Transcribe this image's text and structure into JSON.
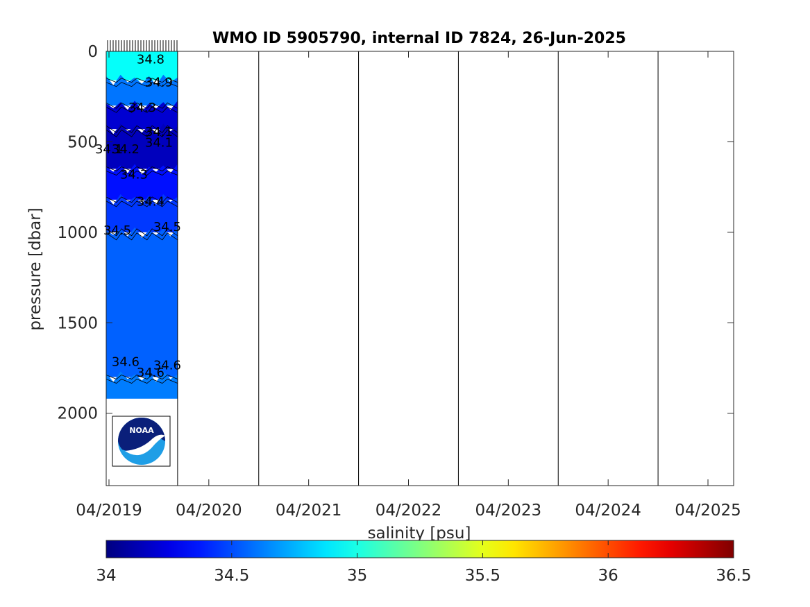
{
  "chart_data": {
    "type": "heatmap",
    "title": "WMO ID 5905790, internal ID 7824, 26-Jun-2025",
    "xlabel": "",
    "ylabel": "pressure [dbar]",
    "x_ticks": [
      "04/2019",
      "04/2020",
      "04/2021",
      "04/2022",
      "04/2023",
      "04/2024",
      "04/2025"
    ],
    "y_ticks": [
      0,
      500,
      1000,
      1500,
      2000
    ],
    "ylim": [
      2400,
      0
    ],
    "y_reversed": true,
    "grid": false,
    "data_span": [
      "2019-04",
      "2019-12"
    ],
    "vertical_lines": [
      "2020-10",
      "2021-10",
      "2022-10",
      "2023-10",
      "2024-10"
    ],
    "layers": [
      {
        "top": 0,
        "bottom": 160,
        "value": 34.95
      },
      {
        "top": 160,
        "bottom": 300,
        "value": 34.6
      },
      {
        "top": 300,
        "bottom": 430,
        "value": 34.2
      },
      {
        "top": 430,
        "bottom": 650,
        "value": 34.15
      },
      {
        "top": 650,
        "bottom": 820,
        "value": 34.35
      },
      {
        "top": 820,
        "bottom": 1000,
        "value": 34.45
      },
      {
        "top": 1000,
        "bottom": 1800,
        "value": 34.55
      },
      {
        "top": 1800,
        "bottom": 1920,
        "value": 34.62
      }
    ],
    "contour_labels": [
      {
        "text": "34.9",
        "x": "2019-10",
        "y": 170
      },
      {
        "text": "34.3",
        "x": "2019-08",
        "y": 310
      },
      {
        "text": "34.1",
        "x": "2019-10",
        "y": 445
      },
      {
        "text": "34.1",
        "x": "2019-10",
        "y": 505
      },
      {
        "text": "34.1",
        "x": "2019-04",
        "y": 540
      },
      {
        "text": "34.2",
        "x": "2019-06",
        "y": 540
      },
      {
        "text": "34.3",
        "x": "2019-07",
        "y": 680
      },
      {
        "text": "34.4",
        "x": "2019-09",
        "y": 830
      },
      {
        "text": "34.5",
        "x": "2019-05",
        "y": 990
      },
      {
        "text": "34.5",
        "x": "2019-11",
        "y": 970
      },
      {
        "text": "34.6",
        "x": "2019-06",
        "y": 1715
      },
      {
        "text": "34.6",
        "x": "2019-11",
        "y": 1735
      },
      {
        "text": "34.6",
        "x": "2019-09",
        "y": 1775
      },
      {
        "text": "34.8",
        "x": "2019-09",
        "y": 45
      }
    ],
    "colorbar": {
      "label": "salinity [psu]",
      "range": [
        34,
        36.5
      ],
      "ticks": [
        "34",
        "34.5",
        "35",
        "35.5",
        "36",
        "36.5"
      ],
      "colormap": "jet"
    }
  },
  "logo": {
    "text": "NOAA",
    "dark": "#0a1f7a",
    "light": "#1f9ee6"
  },
  "colors": {
    "axes": "#262626",
    "frame": "#000000"
  }
}
